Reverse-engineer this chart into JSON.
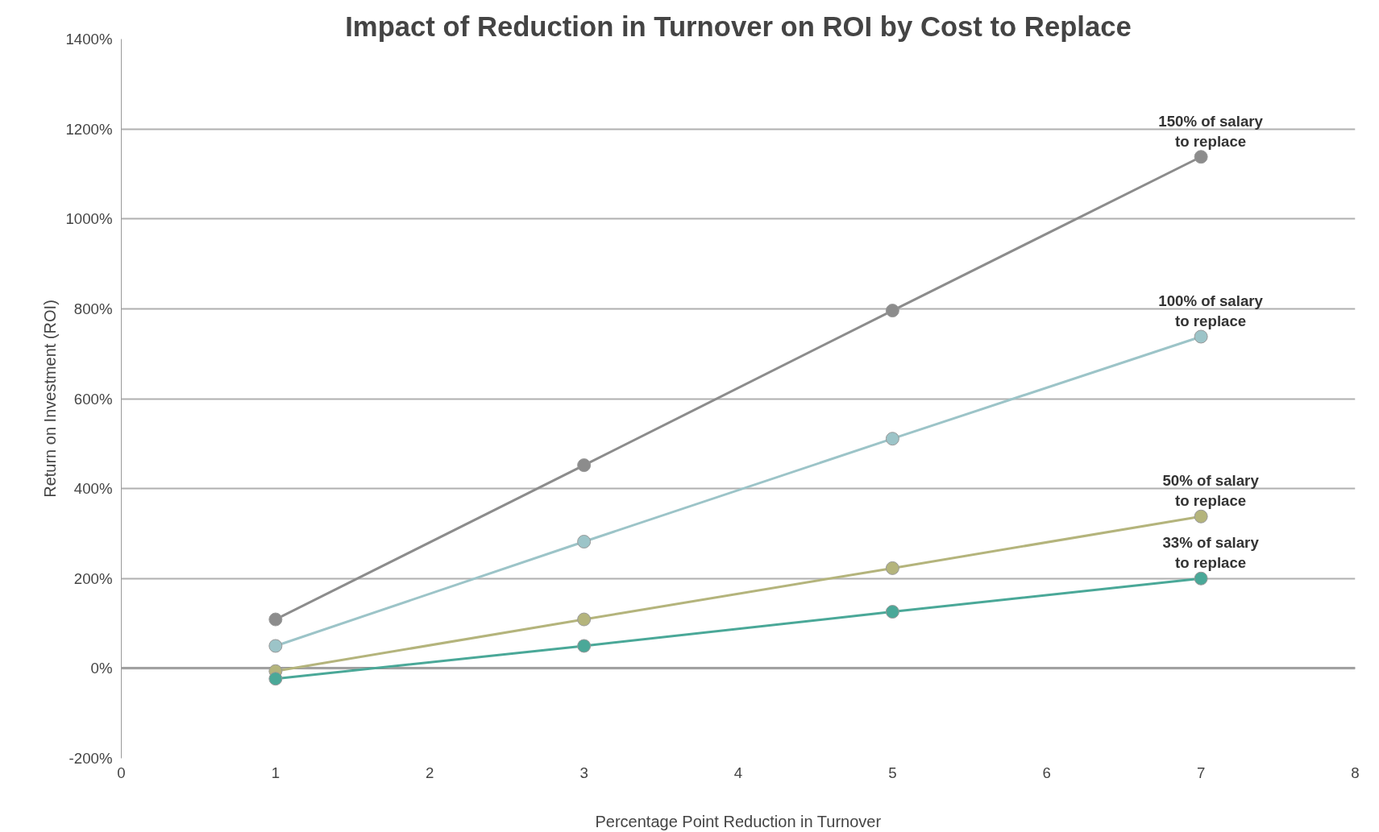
{
  "chart_data": {
    "type": "line",
    "title": "Impact of Reduction in Turnover on ROI by Cost to Replace",
    "xlabel": "Percentage Point Reduction in Turnover",
    "ylabel": "Return on Investment (ROI)",
    "x": [
      1,
      3,
      5,
      7
    ],
    "series": [
      {
        "name": "150% of salary to replace",
        "color": "#8c8c8c",
        "values": [
          109,
          452,
          796,
          1138
        ]
      },
      {
        "name": "100% of salary to replace",
        "color": "#9cc4c8",
        "values": [
          50,
          282,
          511,
          738
        ]
      },
      {
        "name": "50% of salary to replace",
        "color": "#b4b47c",
        "values": [
          -6,
          109,
          223,
          338
        ]
      },
      {
        "name": "33% of salary to replace",
        "color": "#4aa898",
        "values": [
          -23,
          50,
          126,
          200
        ]
      }
    ],
    "xlim": [
      0,
      8
    ],
    "xticks": [
      0,
      1,
      2,
      3,
      4,
      5,
      6,
      7,
      8
    ],
    "ylim": [
      -200,
      1400
    ],
    "yticks": [
      {
        "value": -200,
        "label": "-200%"
      },
      {
        "value": 0,
        "label": "0%"
      },
      {
        "value": 200,
        "label": "200%"
      },
      {
        "value": 400,
        "label": "400%"
      },
      {
        "value": 600,
        "label": "600%"
      },
      {
        "value": 800,
        "label": "800%"
      },
      {
        "value": 1000,
        "label": "1000%"
      },
      {
        "value": 1200,
        "label": "1200%"
      },
      {
        "value": 1400,
        "label": "1400%"
      }
    ],
    "grid": "y",
    "marker": "circle",
    "line_style": "solid"
  }
}
